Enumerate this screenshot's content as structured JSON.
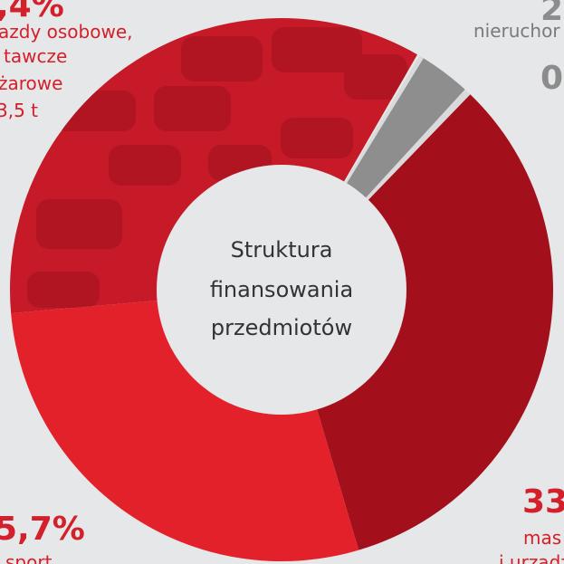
{
  "center": {
    "lines": [
      "Struktura",
      "finansowania",
      "przedmiotów"
    ]
  },
  "labels": {
    "top_left": {
      "value": ",4%",
      "lines": [
        "azdy osobowe,",
        "tawcze",
        "żarowe",
        "3,5 t"
      ]
    },
    "top_right": {
      "value": "2",
      "lines": [
        "nieruchor"
      ],
      "value2": "0"
    },
    "bottom_right": {
      "value": "33",
      "lines": [
        "mas",
        "i urządz"
      ]
    },
    "bottom_left": {
      "value": "5,7%",
      "lines": [
        "sport"
      ]
    }
  }
}
